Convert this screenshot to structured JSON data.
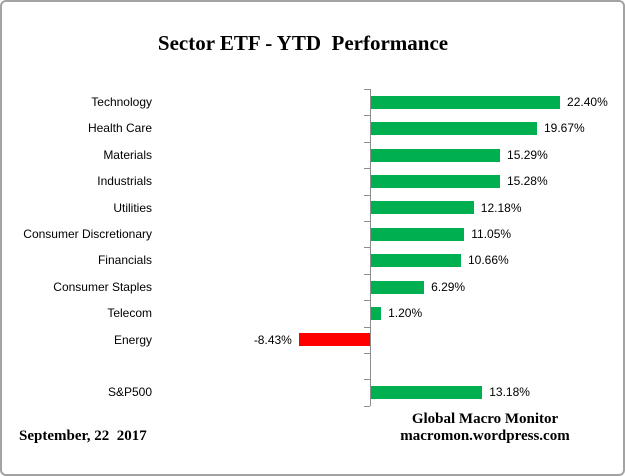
{
  "footer": {
    "date": "September, 22  2017",
    "brand_line1": "Global Macro Monitor",
    "brand_line2": "macromon.wordpress.com"
  },
  "colors": {
    "positive": "#00B050",
    "negative": "#FF0000",
    "axis": "#8C8C8C",
    "border": "#A3A3A3",
    "text": "#000000"
  },
  "chart_data": {
    "type": "bar",
    "orientation": "horizontal",
    "title": "Sector ETF - YTD  Performance",
    "categories": [
      "Technology",
      "Health Care",
      "Materials",
      "Industrials",
      "Utilities",
      "Consumer Discretionary",
      "Financials",
      "Consumer Staples",
      "Telecom",
      "Energy",
      "S&P500"
    ],
    "values": [
      22.4,
      19.67,
      15.29,
      15.28,
      12.18,
      11.05,
      10.66,
      6.29,
      1.2,
      -8.43,
      13.18
    ],
    "value_labels": [
      "22.40%",
      "19.67%",
      "15.29%",
      "15.28%",
      "12.18%",
      "11.05%",
      "10.66%",
      "6.29%",
      "1.20%",
      "-8.43%",
      "13.18%"
    ],
    "separator_before_index": 10,
    "xlabel": "",
    "ylabel": "",
    "grid": false,
    "legend": false,
    "xlim": [
      -10,
      25
    ]
  }
}
